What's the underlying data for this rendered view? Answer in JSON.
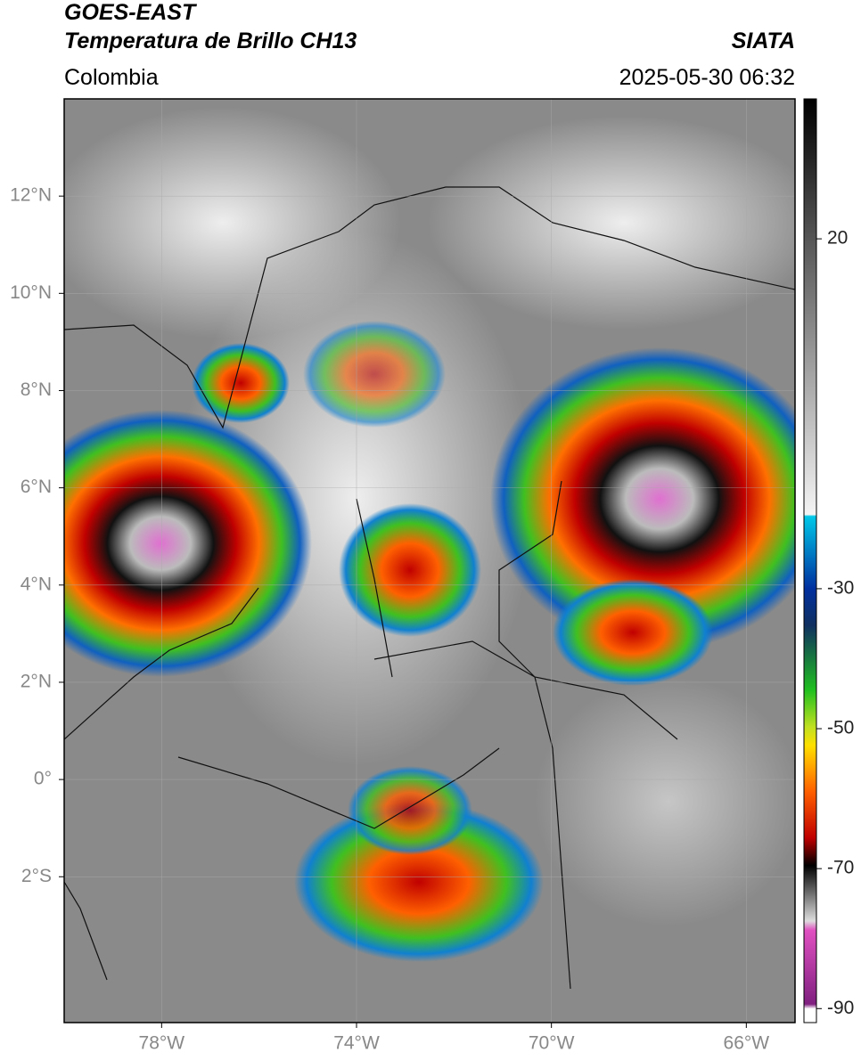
{
  "header": {
    "title_line1": "GOES-EAST",
    "title_line2": "Temperatura de Brillo CH13",
    "source": "SIATA",
    "region": "Colombia",
    "timestamp": "2025-05-30 06:32"
  },
  "map": {
    "xlim": [
      -80,
      -65
    ],
    "ylim": [
      -5,
      14
    ],
    "xticks": [
      {
        "value": -78,
        "label": "78°W"
      },
      {
        "value": -74,
        "label": "74°W"
      },
      {
        "value": -70,
        "label": "70°W"
      },
      {
        "value": -66,
        "label": "66°W"
      }
    ],
    "yticks": [
      {
        "value": 12,
        "label": "12°N"
      },
      {
        "value": 10,
        "label": "10°N"
      },
      {
        "value": 8,
        "label": "8°N"
      },
      {
        "value": 6,
        "label": "6°N"
      },
      {
        "value": 4,
        "label": "4°N"
      },
      {
        "value": 2,
        "label": "2°N"
      },
      {
        "value": 0,
        "label": "0°"
      },
      {
        "value": -2,
        "label": "2°S"
      }
    ]
  },
  "colorbar": {
    "lim": [
      -92,
      40
    ],
    "ticks": [
      20,
      -30,
      -50,
      -70,
      -90
    ]
  }
}
